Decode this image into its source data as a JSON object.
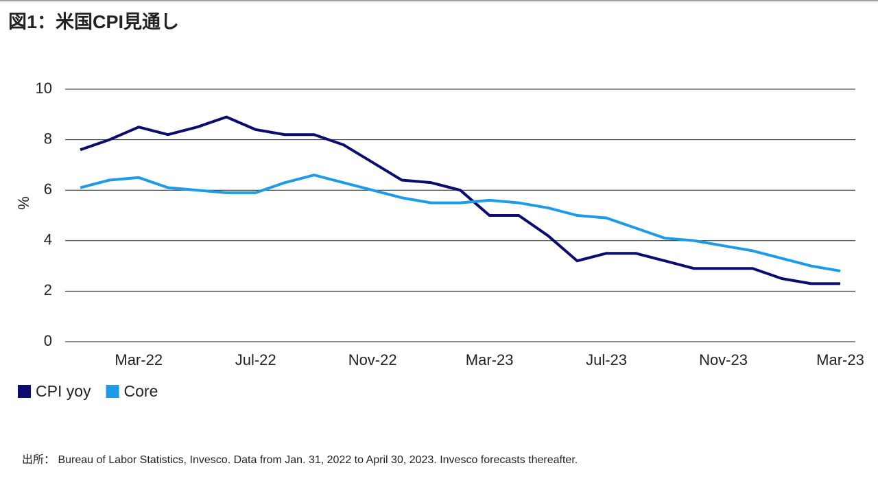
{
  "chart_data": {
    "type": "line",
    "title": "図1：米国CPI見通し",
    "y_label": "%",
    "source": "出所： Bureau of Labor Statistics, Invesco. Data from Jan. 31, 2022 to April 30, 2023. Invesco forecasts thereafter.",
    "categories": [
      null,
      null,
      "Mar-22",
      null,
      null,
      null,
      "Jul-22",
      null,
      null,
      null,
      "Nov-22",
      null,
      null,
      null,
      "Mar-23",
      null,
      null,
      null,
      "Jul-23",
      null,
      null,
      null,
      "Nov-23",
      null,
      null,
      null,
      "Mar-23"
    ],
    "series": [
      {
        "name": "CPI yoy",
        "color": "#0c0c6e",
        "values": [
          7.6,
          8.0,
          8.5,
          8.2,
          8.5,
          8.9,
          8.4,
          8.2,
          8.2,
          7.8,
          7.1,
          6.4,
          6.3,
          6.0,
          5.0,
          5.0,
          4.2,
          3.2,
          3.5,
          3.5,
          3.2,
          2.9,
          2.9,
          2.9,
          2.5,
          2.3,
          2.3
        ]
      },
      {
        "name": "Core",
        "color": "#1e9be6",
        "values": [
          6.1,
          6.4,
          6.5,
          6.1,
          6.0,
          5.9,
          5.9,
          6.3,
          6.6,
          6.3,
          6.0,
          5.7,
          5.5,
          5.5,
          5.6,
          5.5,
          5.3,
          5.0,
          4.9,
          4.5,
          4.1,
          4.0,
          3.8,
          3.6,
          3.3,
          3.0,
          2.8
        ]
      }
    ],
    "ylim": [
      0,
      10
    ],
    "yticks": [
      0,
      2,
      4,
      6,
      8,
      10
    ],
    "grid": true,
    "legend": "bottom-left"
  }
}
